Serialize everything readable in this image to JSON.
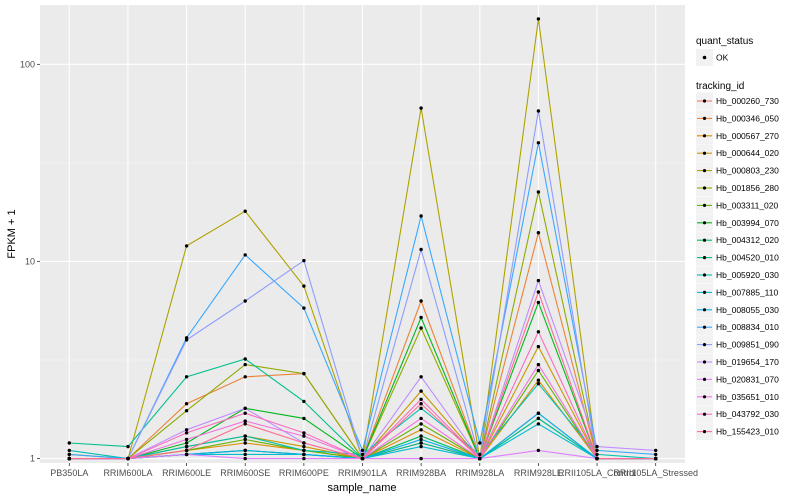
{
  "chart_data": {
    "type": "line",
    "xlabel": "sample_name",
    "ylabel": "FPKM + 1",
    "y_scale": "log10",
    "ylim": [
      0.95,
      200
    ],
    "y_ticks": [
      1,
      10,
      100
    ],
    "y_tick_labels": [
      "1",
      "10",
      "100"
    ],
    "grid": true,
    "legend_position": "right",
    "categories": [
      "PB350LA",
      "RRIM600LA",
      "RRIM600LE",
      "RRIM600SE",
      "RRIM600PE",
      "RRIM901LA",
      "RRIM928BA",
      "RRIM928LA",
      "RRIM928LE",
      "RRII105LA_Control",
      "RRII105LA_Stressed"
    ],
    "point_legend": {
      "title": "quant_status",
      "items": [
        "OK"
      ]
    },
    "line_legend_title": "tracking_id",
    "series": [
      {
        "name": "Hb_000260_730",
        "color": "#F8766D",
        "values": [
          1.0,
          1.0,
          1.05,
          1.1,
          1.05,
          1.0,
          1.2,
          1.0,
          1.7,
          1.0,
          1.0
        ]
      },
      {
        "name": "Hb_000346_050",
        "color": "#EC8239",
        "values": [
          1.0,
          1.0,
          1.9,
          2.6,
          2.7,
          1.0,
          6.3,
          1.0,
          14.0,
          1.0,
          1.0
        ]
      },
      {
        "name": "Hb_000567_270",
        "color": "#DB8E00",
        "values": [
          1.0,
          1.0,
          1.1,
          1.2,
          1.1,
          1.0,
          1.4,
          1.0,
          2.5,
          1.0,
          1.0
        ]
      },
      {
        "name": "Hb_000644_020",
        "color": "#C79800",
        "values": [
          1.0,
          1.0,
          1.15,
          1.3,
          1.15,
          1.0,
          2.2,
          1.0,
          3.7,
          1.0,
          1.0
        ]
      },
      {
        "name": "Hb_000803_230",
        "color": "#AEA200",
        "values": [
          1.05,
          1.0,
          12.0,
          18.0,
          7.5,
          1.0,
          60.0,
          1.0,
          170.0,
          1.0,
          1.0
        ]
      },
      {
        "name": "Hb_001856_280",
        "color": "#8FAA00",
        "values": [
          1.0,
          1.0,
          1.75,
          3.0,
          2.7,
          1.0,
          4.6,
          1.0,
          22.5,
          1.0,
          1.0
        ]
      },
      {
        "name": "Hb_003311_020",
        "color": "#64B200",
        "values": [
          1.0,
          1.0,
          1.1,
          1.25,
          1.1,
          1.0,
          1.5,
          1.0,
          2.8,
          1.0,
          1.0
        ]
      },
      {
        "name": "Hb_003994_070",
        "color": "#00B81B",
        "values": [
          1.0,
          1.0,
          1.2,
          1.8,
          1.6,
          1.0,
          5.2,
          1.0,
          6.2,
          1.0,
          1.0
        ]
      },
      {
        "name": "Hb_004312_020",
        "color": "#00BD5C",
        "values": [
          1.0,
          1.0,
          1.05,
          1.1,
          1.05,
          1.0,
          1.3,
          1.0,
          1.6,
          1.0,
          1.0
        ]
      },
      {
        "name": "Hb_004520_010",
        "color": "#00C08E",
        "values": [
          1.2,
          1.15,
          2.6,
          3.2,
          1.95,
          1.0,
          1.2,
          1.0,
          1.6,
          1.0,
          1.0
        ]
      },
      {
        "name": "Hb_005920_030",
        "color": "#00C1B2",
        "values": [
          1.1,
          1.0,
          1.15,
          1.3,
          1.1,
          1.05,
          1.8,
          1.05,
          2.4,
          1.05,
          1.0
        ]
      },
      {
        "name": "Hb_007885_110",
        "color": "#00BCD1",
        "values": [
          1.0,
          1.0,
          1.05,
          1.05,
          1.05,
          1.0,
          1.15,
          1.0,
          1.5,
          1.0,
          1.0
        ]
      },
      {
        "name": "Hb_008055_030",
        "color": "#00B3EB",
        "values": [
          1.0,
          1.0,
          1.05,
          1.1,
          1.05,
          1.0,
          1.25,
          1.0,
          1.7,
          1.0,
          1.0
        ]
      },
      {
        "name": "Hb_008834_010",
        "color": "#39A8FF",
        "values": [
          1.05,
          1.0,
          4.1,
          10.8,
          5.8,
          1.1,
          17.0,
          1.2,
          40.0,
          1.1,
          1.05
        ]
      },
      {
        "name": "Hb_009851_090",
        "color": "#8E9CFF",
        "values": [
          1.0,
          1.0,
          4.0,
          6.3,
          10.1,
          1.0,
          11.5,
          1.0,
          58.0,
          1.0,
          1.0
        ]
      },
      {
        "name": "Hb_019654_170",
        "color": "#C08DFF",
        "values": [
          1.0,
          1.0,
          1.4,
          1.8,
          1.2,
          1.0,
          2.6,
          1.0,
          8.0,
          1.15,
          1.1
        ]
      },
      {
        "name": "Hb_020831_070",
        "color": "#E17EFF",
        "values": [
          1.0,
          1.0,
          1.05,
          1.0,
          1.0,
          1.0,
          1.0,
          1.0,
          1.1,
          1.0,
          1.0
        ]
      },
      {
        "name": "Hb_035651_010",
        "color": "#F371E1",
        "values": [
          1.0,
          1.0,
          1.25,
          1.55,
          1.3,
          1.0,
          1.6,
          1.0,
          3.0,
          1.0,
          1.0
        ]
      },
      {
        "name": "Hb_043792_030",
        "color": "#FD6ABF",
        "values": [
          1.0,
          1.0,
          1.35,
          1.7,
          1.35,
          1.0,
          2.0,
          1.0,
          4.4,
          1.0,
          1.0
        ]
      },
      {
        "name": "Hb_155423_010",
        "color": "#FF6C92",
        "values": [
          1.0,
          1.0,
          1.1,
          1.5,
          1.2,
          1.0,
          1.9,
          1.0,
          7.0,
          1.0,
          1.0
        ]
      }
    ]
  }
}
